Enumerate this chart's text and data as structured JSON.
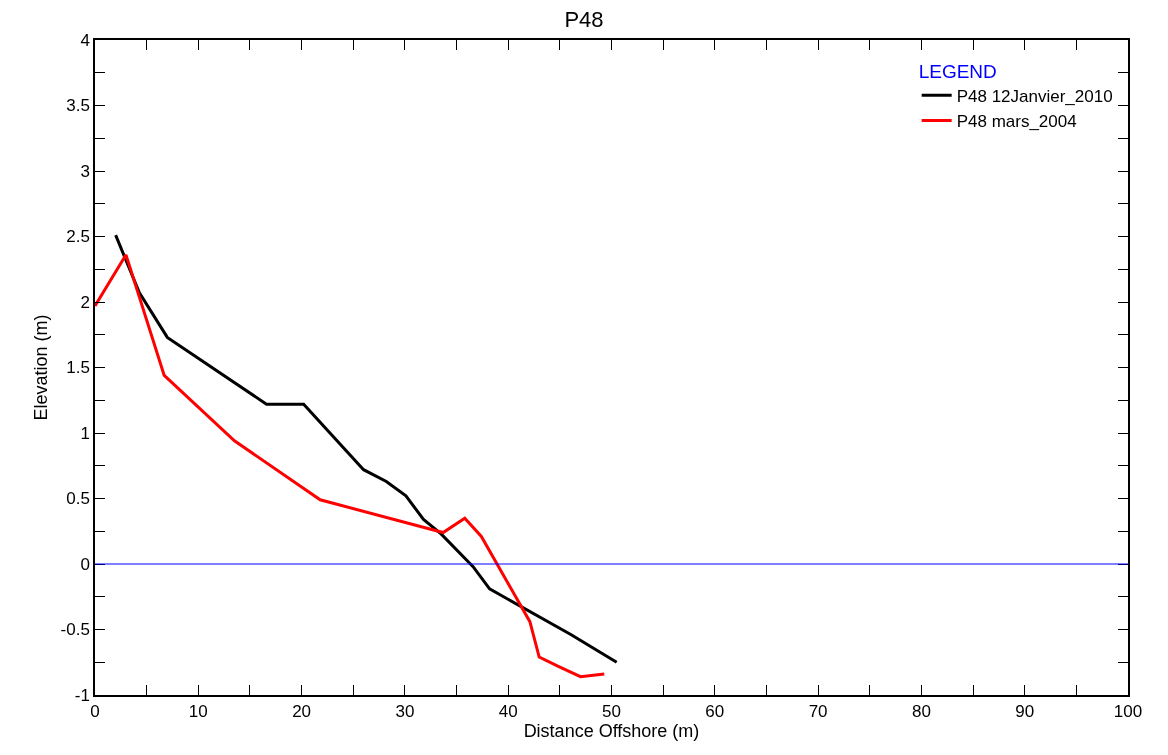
{
  "chart_data": {
    "type": "line",
    "title": "P48",
    "xlabel": "Distance Offshore (m)",
    "ylabel": "Elevation (m)",
    "legend_title": "LEGEND",
    "legend": "top right",
    "marker": "none",
    "line_style": "solid",
    "xlim": [
      0,
      100
    ],
    "xticks": [
      0,
      {
        "value": 5,
        "label": null
      },
      10,
      {
        "value": 15,
        "label": null
      },
      20,
      {
        "value": 25,
        "label": null
      },
      30,
      {
        "value": 35,
        "label": null
      },
      40,
      {
        "value": 45,
        "label": null
      },
      50,
      {
        "value": 55,
        "label": null
      },
      60,
      {
        "value": 65,
        "label": null
      },
      70,
      {
        "value": 75,
        "label": null
      },
      80,
      {
        "value": 85,
        "label": null
      },
      90,
      {
        "value": 95,
        "label": null
      },
      100
    ],
    "ylim": [
      -1,
      4
    ],
    "yticks": [
      -1,
      {
        "value": -0.75,
        "label": null
      },
      -0.5,
      {
        "value": -0.25,
        "label": null
      },
      0,
      {
        "value": 0.25,
        "label": null
      },
      0.5,
      {
        "value": 0.75,
        "label": null
      },
      1,
      {
        "value": 1.25,
        "label": null
      },
      1.5,
      {
        "value": 1.75,
        "label": null
      },
      2,
      {
        "value": 2.25,
        "label": null
      },
      2.5,
      {
        "value": 2.75,
        "label": null
      },
      3,
      {
        "value": 3.25,
        "label": null
      },
      3.5,
      {
        "value": 3.75,
        "label": null
      },
      4
    ],
    "ref_lines": [
      {
        "axis": "y",
        "value": 0,
        "color": "#0000ff"
      }
    ],
    "series": [
      {
        "name": "P48 12Janvier_2010",
        "color": "#000000",
        "x": [
          2.0,
          4.3,
          7.0,
          16.6,
          20.2,
          26.0,
          28.2,
          30.1,
          31.8,
          33.5,
          36.6,
          38.2,
          46.1,
          50.5
        ],
        "values": [
          2.51,
          2.07,
          1.73,
          1.22,
          1.22,
          0.72,
          0.63,
          0.52,
          0.34,
          0.23,
          -0.02,
          -0.19,
          -0.54,
          -0.75
        ]
      },
      {
        "name": "P48 mars_2004",
        "color": "#ff0000",
        "x": [
          0,
          3.0,
          6.7,
          13.5,
          21.8,
          33.7,
          35.8,
          37.4,
          42.1,
          43.0,
          44.8,
          47.0,
          49.3
        ],
        "values": [
          1.97,
          2.36,
          1.44,
          0.94,
          0.49,
          0.24,
          0.35,
          0.21,
          -0.44,
          -0.71,
          -0.78,
          -0.86,
          -0.84
        ]
      }
    ]
  }
}
